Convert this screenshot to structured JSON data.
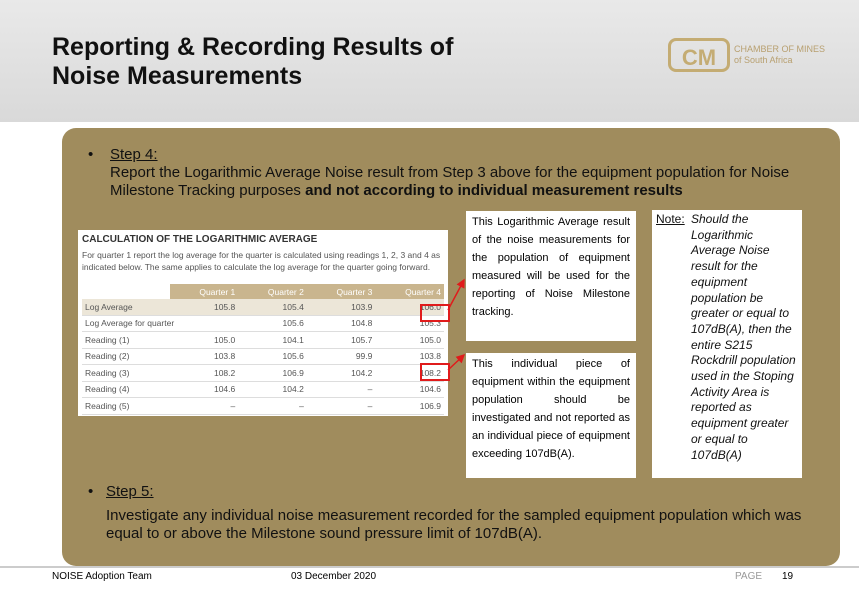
{
  "header": {
    "title_line1": "Reporting & Recording Results of",
    "title_line2": "Noise Measurements",
    "logo_mark": "CM",
    "logo_name": "CHAMBER OF MINES",
    "logo_sub": "of South Africa"
  },
  "step4": {
    "heading": "Step 4:",
    "text": "Report the Logarithmic Average Noise result from Step 3 above for the equipment population for Noise Milestone Tracking purposes",
    "bold": "and not according to individual measurement results"
  },
  "table": {
    "title": "CALCULATION OF THE LOGARITHMIC AVERAGE",
    "description": "For quarter 1 report the log average for the quarter is calculated using readings 1, 2, 3 and 4 as indicated below. The same applies to calculate the log average for the quarter going forward.",
    "columns": [
      "Quarter 1",
      "Quarter 2",
      "Quarter 3",
      "Quarter 4"
    ],
    "rows": [
      {
        "label": "Log Average",
        "cells": [
          "105.8",
          "105.4",
          "103.9",
          "106.0"
        ]
      },
      {
        "label": "Log Average for quarter",
        "cells": [
          null,
          "105.6",
          "104.8",
          "105.3"
        ]
      },
      {
        "label": "Reading (1)",
        "cells": [
          "105.0",
          "104.1",
          "105.7",
          "105.0"
        ]
      },
      {
        "label": "Reading (2)",
        "cells": [
          "103.8",
          "105.6",
          "99.9",
          "103.8"
        ]
      },
      {
        "label": "Reading (3)",
        "cells": [
          "108.2",
          "106.9",
          "104.2",
          "108.2"
        ]
      },
      {
        "label": "Reading (4)",
        "cells": [
          "104.6",
          "104.2",
          "–",
          "104.6"
        ]
      },
      {
        "label": "Reading (5)",
        "cells": [
          "–",
          "–",
          "–",
          "106.9"
        ]
      }
    ]
  },
  "callout1": "This Logarithmic Average result of the noise measurements for the population of equipment measured will be used for the reporting of Noise Milestone tracking.",
  "callout2": "This individual piece of equipment within the equipment population should be investigated and not reported as an individual piece of equipment exceeding 107dB(A).",
  "note": {
    "label": "Note:",
    "text": "Should the Logarithmic Average Noise result for the equipment population be greater or equal to 107dB(A), then the entire S215 Rockdrill population used in the Stoping Activity Area is reported as equipment greater or equal to 107dB(A)"
  },
  "step5": {
    "heading": "Step 5:",
    "text": "Investigate any individual noise measurement recorded for the sampled equipment population which was equal to or above the Milestone sound pressure limit of 107dB(A)."
  },
  "footer": {
    "team": "NOISE Adoption Team",
    "date": "03 December 2020",
    "page_label": "PAGE",
    "page": "19"
  }
}
